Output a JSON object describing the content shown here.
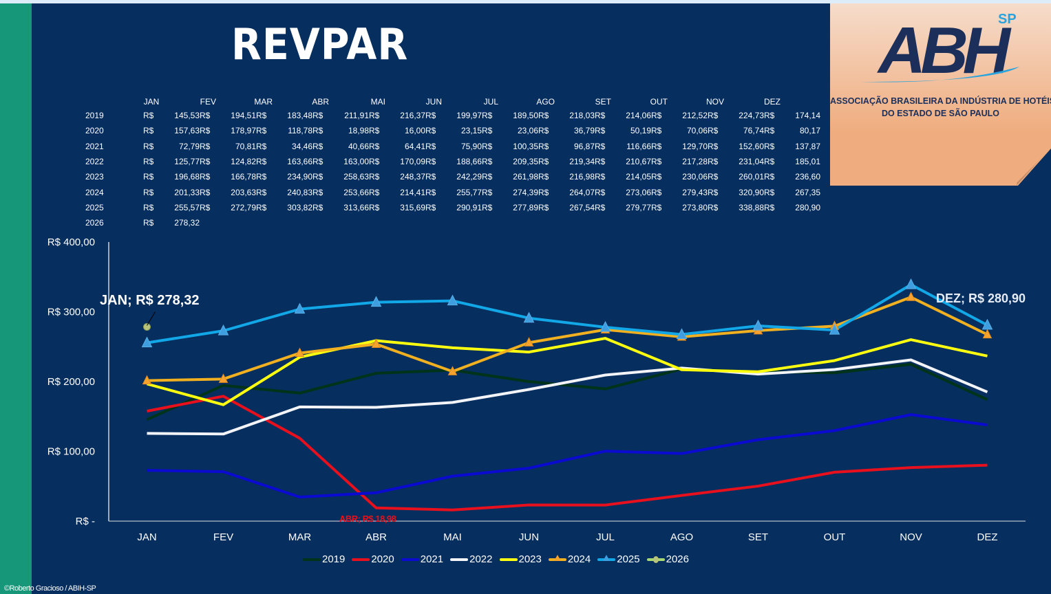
{
  "title": "REVPAR",
  "logo": {
    "mark": "ABH",
    "superscript": "SP",
    "line1": "ASSOCIAÇÃO BRASILEIRA DA INDÚSTRIA DE HOTÉIS",
    "line2": "DO ESTADO DE SÃO PAULO"
  },
  "table": {
    "headers": [
      "JAN",
      "FEV",
      "MAR",
      "ABR",
      "MAI",
      "JUN",
      "JUL",
      "AGO",
      "SET",
      "OUT",
      "NOV",
      "DEZ"
    ],
    "currency": "R$",
    "rows": [
      {
        "year": "2019",
        "values": [
          "145,53",
          "194,51",
          "183,48",
          "211,91",
          "216,37",
          "199,97",
          "189,50",
          "218,03",
          "214,06",
          "212,52",
          "224,73",
          "174,14"
        ]
      },
      {
        "year": "2020",
        "values": [
          "157,63",
          "178,97",
          "118,78",
          "18,98",
          "16,00",
          "23,15",
          "23,06",
          "36,79",
          "50,19",
          "70,06",
          "76,74",
          "80,17"
        ]
      },
      {
        "year": "2021",
        "values": [
          "72,79",
          "70,81",
          "34,46",
          "40,66",
          "64,41",
          "75,90",
          "100,35",
          "96,87",
          "116,66",
          "129,70",
          "152,60",
          "137,87"
        ]
      },
      {
        "year": "2022",
        "values": [
          "125,77",
          "124,82",
          "163,66",
          "163,00",
          "170,09",
          "188,66",
          "209,35",
          "219,34",
          "210,67",
          "217,28",
          "231,04",
          "185,01"
        ]
      },
      {
        "year": "2023",
        "values": [
          "196,68",
          "166,78",
          "234,90",
          "258,63",
          "248,37",
          "242,29",
          "261,98",
          "216,98",
          "214,05",
          "230,06",
          "260,01",
          "236,60"
        ]
      },
      {
        "year": "2024",
        "values": [
          "201,33",
          "203,63",
          "240,83",
          "253,66",
          "214,41",
          "255,77",
          "274,39",
          "264,07",
          "273,06",
          "279,43",
          "320,90",
          "267,35"
        ]
      },
      {
        "year": "2025",
        "values": [
          "255,57",
          "272,79",
          "303,82",
          "313,66",
          "315,69",
          "290,91",
          "277,89",
          "267,54",
          "279,77",
          "273,80",
          "338,88",
          "280,90"
        ]
      },
      {
        "year": "2026",
        "values": [
          "278,32"
        ]
      }
    ]
  },
  "chart_data": {
    "type": "line",
    "title": "REVPAR",
    "xlabel": "",
    "ylabel": "",
    "categories": [
      "JAN",
      "FEV",
      "MAR",
      "ABR",
      "MAI",
      "JUN",
      "JUL",
      "AGO",
      "SET",
      "OUT",
      "NOV",
      "DEZ"
    ],
    "ylim": [
      0,
      400
    ],
    "yticks": [
      0,
      100,
      200,
      300,
      400
    ],
    "ytick_labels": [
      "R$ -",
      "R$ 100,00",
      "R$ 200,00",
      "R$ 300,00",
      "R$ 400,00"
    ],
    "grid": false,
    "legend_position": "bottom",
    "series": [
      {
        "name": "2019",
        "color": "#00331a",
        "marker": "none",
        "values": [
          145.53,
          194.51,
          183.48,
          211.91,
          216.37,
          199.97,
          189.5,
          218.03,
          214.06,
          212.52,
          224.73,
          174.14
        ]
      },
      {
        "name": "2020",
        "color": "#e8101c",
        "marker": "none",
        "values": [
          157.63,
          178.97,
          118.78,
          18.98,
          16.0,
          23.15,
          23.06,
          36.79,
          50.19,
          70.06,
          76.74,
          80.17
        ]
      },
      {
        "name": "2021",
        "color": "#0a0ad0",
        "marker": "none",
        "values": [
          72.79,
          70.81,
          34.46,
          40.66,
          64.41,
          75.9,
          100.35,
          96.87,
          116.66,
          129.7,
          152.6,
          137.87
        ]
      },
      {
        "name": "2022",
        "color": "#f2f4f8",
        "marker": "none",
        "values": [
          125.77,
          124.82,
          163.66,
          163.0,
          170.09,
          188.66,
          209.35,
          219.34,
          210.67,
          217.28,
          231.04,
          185.01
        ]
      },
      {
        "name": "2023",
        "color": "#ffff10",
        "marker": "none",
        "values": [
          196.68,
          166.78,
          234.9,
          258.63,
          248.37,
          242.29,
          261.98,
          216.98,
          214.05,
          230.06,
          260.01,
          236.6
        ]
      },
      {
        "name": "2024",
        "color": "#f0b020",
        "marker": "triangle",
        "marker_color": "#f5a22e",
        "values": [
          201.33,
          203.63,
          240.83,
          253.66,
          214.41,
          255.77,
          274.39,
          264.07,
          273.06,
          279.43,
          320.9,
          267.35
        ]
      },
      {
        "name": "2025",
        "color": "#12a8e8",
        "marker": "triangle",
        "marker_color": "#3f9ee0",
        "values": [
          255.57,
          272.79,
          303.82,
          313.66,
          315.69,
          290.91,
          277.89,
          267.54,
          279.77,
          273.8,
          338.88,
          280.9
        ]
      },
      {
        "name": "2026",
        "color": "#a8d870",
        "marker": "circle",
        "marker_color": "#b8c47a",
        "values": [
          278.32
        ]
      }
    ],
    "annotations": [
      {
        "text": "JAN;  R$ 278,32",
        "series": "2026",
        "category": "JAN",
        "color": "#ffffff"
      },
      {
        "text": "DEZ;  R$ 280,90",
        "series": "2025",
        "category": "DEZ",
        "color": "#e6ecf5"
      },
      {
        "text": "ABR;  R$ 18,98",
        "series": "2020",
        "category": "ABR",
        "color": "#e8101c"
      }
    ]
  },
  "footer": "©Roberto Gracioso / ABIH-SP"
}
